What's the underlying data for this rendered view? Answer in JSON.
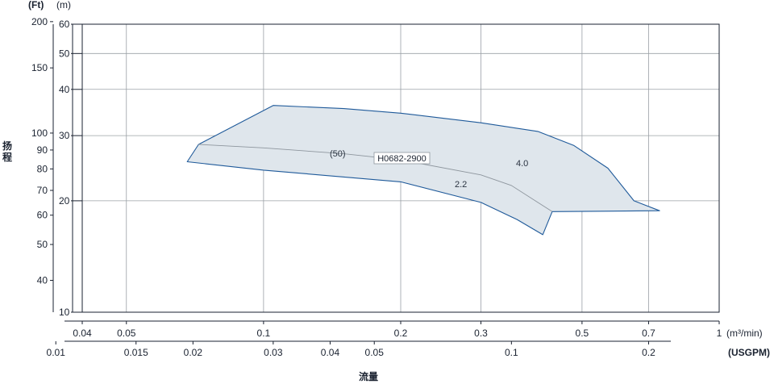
{
  "colors": {
    "region_fill": "#dfe6ec",
    "region_stroke": "#1f5a9a",
    "curve_stroke": "#8e969e",
    "grid": "#9aa0a6",
    "axis": "#1a2230"
  },
  "chart_data": {
    "type": "area",
    "title": "",
    "xlabel": "流量",
    "ylabel": "扬程",
    "y_axes": {
      "left_outer": {
        "unit": "(Ft)",
        "ticks": [
          "200",
          "150",
          "100",
          "90",
          "80",
          "70",
          "60",
          "50",
          "40"
        ]
      },
      "left_inner": {
        "unit": "(m)",
        "ticks": [
          "60",
          "50",
          "40",
          "30",
          "20",
          "10"
        ],
        "range": [
          10,
          60
        ],
        "scale": "log"
      }
    },
    "x_axes": {
      "primary": {
        "unit": "(m³/min)",
        "ticks": [
          "0.04",
          "0.05",
          "0.1",
          "0.2",
          "0.3",
          "0.5",
          "0.7",
          "1"
        ],
        "range": [
          0.04,
          1
        ],
        "scale": "log"
      },
      "secondary": {
        "unit": "(USGPM)",
        "ticks": [
          "0.01",
          "0.015",
          "0.02",
          "0.03",
          "0.04",
          "0.05",
          "0.1",
          "0.2"
        ]
      }
    },
    "grid": true,
    "series": [
      {
        "name": "H0682-2900",
        "envelope": [
          {
            "x": 0.068,
            "y": 25.5
          },
          {
            "x": 0.072,
            "y": 28.4
          },
          {
            "x": 0.105,
            "y": 36.2
          },
          {
            "x": 0.15,
            "y": 35.5
          },
          {
            "x": 0.2,
            "y": 34.5
          },
          {
            "x": 0.3,
            "y": 32.5
          },
          {
            "x": 0.4,
            "y": 30.8
          },
          {
            "x": 0.48,
            "y": 28.2
          },
          {
            "x": 0.57,
            "y": 24.5
          },
          {
            "x": 0.65,
            "y": 20.0
          },
          {
            "x": 0.74,
            "y": 18.8
          },
          {
            "x": 0.43,
            "y": 18.7
          },
          {
            "x": 0.41,
            "y": 16.2
          },
          {
            "x": 0.36,
            "y": 17.8
          },
          {
            "x": 0.3,
            "y": 19.8
          },
          {
            "x": 0.2,
            "y": 22.5
          },
          {
            "x": 0.1,
            "y": 24.2
          },
          {
            "x": 0.068,
            "y": 25.5
          }
        ],
        "curve": [
          {
            "x": 0.072,
            "y": 28.4
          },
          {
            "x": 0.1,
            "y": 27.8
          },
          {
            "x": 0.15,
            "y": 26.8
          },
          {
            "x": 0.2,
            "y": 25.8
          },
          {
            "x": 0.3,
            "y": 23.5
          },
          {
            "x": 0.35,
            "y": 22.0
          },
          {
            "x": 0.43,
            "y": 18.7
          }
        ],
        "annotations": [
          "(50)",
          "H0682-2900",
          "4.0",
          "2.2"
        ]
      }
    ]
  }
}
